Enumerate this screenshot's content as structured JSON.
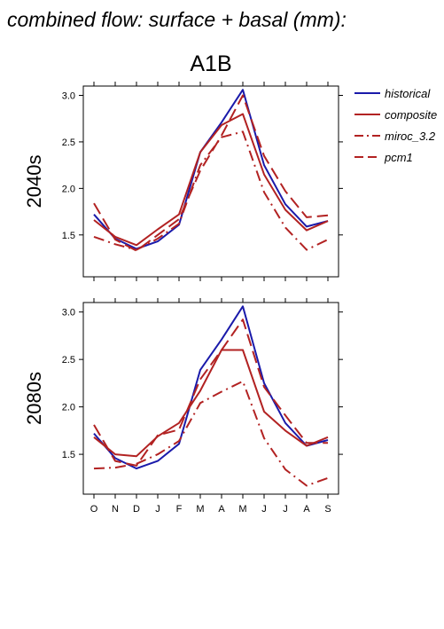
{
  "title": "combined flow: surface + basal (mm):",
  "chart_data": [
    {
      "type": "line",
      "title": "A1B",
      "ylabel": "2040s",
      "xlabel": "",
      "categories": [
        "O",
        "N",
        "D",
        "J",
        "F",
        "M",
        "A",
        "M",
        "J",
        "J",
        "A",
        "S"
      ],
      "yticks": [
        "1.5",
        "2.0",
        "2.5",
        "3.0"
      ],
      "ylim": [
        1.05,
        3.1
      ],
      "series": [
        {
          "name": "historical",
          "color": "#1a1aaa",
          "dash": "solid",
          "values": [
            1.72,
            1.46,
            1.35,
            1.43,
            1.61,
            2.39,
            2.71,
            3.06,
            2.25,
            1.83,
            1.59,
            1.65
          ]
        },
        {
          "name": "composite",
          "color": "#b22222",
          "dash": "solid",
          "values": [
            1.66,
            1.48,
            1.39,
            1.56,
            1.72,
            2.39,
            2.68,
            2.8,
            2.15,
            1.77,
            1.55,
            1.65
          ]
        },
        {
          "name": "miroc_3.2",
          "color": "#b22222",
          "dash": "dashdot",
          "values": [
            1.48,
            1.4,
            1.34,
            1.46,
            1.62,
            2.25,
            2.55,
            2.61,
            1.96,
            1.58,
            1.34,
            1.45
          ]
        },
        {
          "name": "pcm1",
          "color": "#b22222",
          "dash": "dashed",
          "values": [
            1.84,
            1.45,
            1.33,
            1.5,
            1.67,
            2.19,
            2.57,
            3.0,
            2.35,
            1.97,
            1.69,
            1.71
          ]
        }
      ]
    },
    {
      "type": "line",
      "title": "",
      "ylabel": "2080s",
      "xlabel": "",
      "categories": [
        "O",
        "N",
        "D",
        "J",
        "F",
        "M",
        "A",
        "M",
        "J",
        "J",
        "A",
        "S"
      ],
      "yticks": [
        "1.5",
        "2.0",
        "2.5",
        "3.0"
      ],
      "ylim": [
        1.08,
        3.1
      ],
      "series": [
        {
          "name": "historical",
          "color": "#1a1aaa",
          "dash": "solid",
          "values": [
            1.72,
            1.46,
            1.35,
            1.43,
            1.61,
            2.39,
            2.71,
            3.06,
            2.25,
            1.83,
            1.59,
            1.65
          ]
        },
        {
          "name": "composite",
          "color": "#b22222",
          "dash": "solid",
          "values": [
            1.68,
            1.5,
            1.48,
            1.69,
            1.83,
            2.17,
            2.6,
            2.6,
            1.95,
            1.75,
            1.59,
            1.68
          ]
        },
        {
          "name": "miroc_3.2",
          "color": "#b22222",
          "dash": "dashdot",
          "values": [
            1.35,
            1.36,
            1.4,
            1.5,
            1.64,
            2.04,
            2.16,
            2.27,
            1.67,
            1.34,
            1.17,
            1.25
          ]
        },
        {
          "name": "pcm1",
          "color": "#b22222",
          "dash": "dashed",
          "values": [
            1.81,
            1.43,
            1.38,
            1.7,
            1.76,
            2.29,
            2.6,
            2.92,
            2.21,
            1.91,
            1.62,
            1.62
          ]
        }
      ]
    }
  ]
}
